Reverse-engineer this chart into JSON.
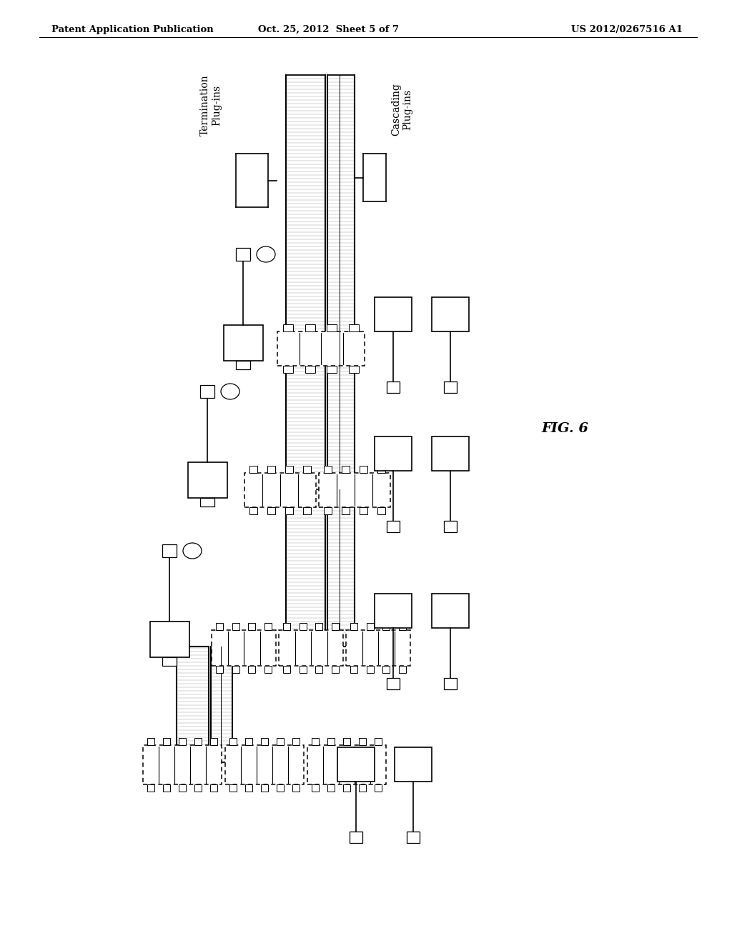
{
  "title_left": "Patent Application Publication",
  "title_mid": "Oct. 25, 2012  Sheet 5 of 7",
  "title_right": "US 2012/0267516 A1",
  "fig_label": "FIG. 6",
  "termination_label": "Termination\nPlug-ins",
  "cascading_label": "Cascading\nPlug-ins",
  "background_color": "#ffffff",
  "line_color": "#000000",
  "hatch_color": "#bbbbbb",
  "gray_fill": "#e8e8e8"
}
